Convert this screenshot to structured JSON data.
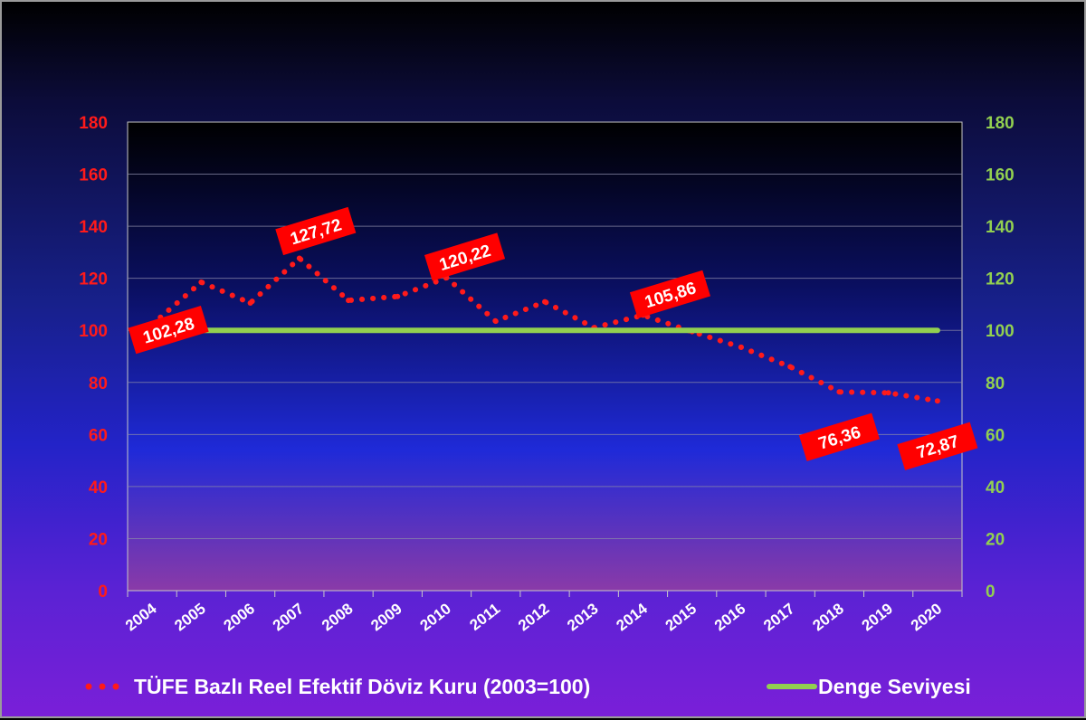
{
  "chart_data": {
    "type": "line",
    "title": "",
    "categories": [
      "2004",
      "2005",
      "2006",
      "2007",
      "2008",
      "2009",
      "2010",
      "2011",
      "2012",
      "2013",
      "2014",
      "2015",
      "2016",
      "2017",
      "2018",
      "2019",
      "2020"
    ],
    "series": [
      {
        "name": "TÜFE  Bazlı Reel Efektif Döviz Kuru (2003=100)",
        "axis": "left",
        "style": "dotted",
        "color": "#ff1a1a",
        "values": [
          102.28,
          118.5,
          110.5,
          127.72,
          111.5,
          113.0,
          120.22,
          103.5,
          111.0,
          101.0,
          105.86,
          99.5,
          93.5,
          86.0,
          76.36,
          76.0,
          72.87
        ]
      },
      {
        "name": "Denge Seviyesi",
        "axis": "left",
        "style": "solid",
        "color": "#92d050",
        "values": [
          100,
          100,
          100,
          100,
          100,
          100,
          100,
          100,
          100,
          100,
          100,
          100,
          100,
          100,
          100,
          100,
          100
        ]
      }
    ],
    "data_labels": [
      {
        "index": 0,
        "text": "102,28"
      },
      {
        "index": 3,
        "text": "127,72"
      },
      {
        "index": 6,
        "text": "120,22"
      },
      {
        "index": 10,
        "text": "105,86"
      },
      {
        "index": 14,
        "text": "76,36"
      },
      {
        "index": 16,
        "text": "72,87"
      }
    ],
    "y_left": {
      "min": 0,
      "max": 180,
      "ticks": [
        0,
        20,
        40,
        60,
        80,
        100,
        120,
        140,
        160,
        180
      ],
      "color": "#ff1a1a"
    },
    "y_right": {
      "min": 0,
      "max": 180,
      "ticks": [
        0,
        20,
        40,
        60,
        80,
        100,
        120,
        140,
        160,
        180
      ],
      "color": "#92d050"
    },
    "grid": true,
    "legend_position": "bottom",
    "colors": {
      "series_red": "#ff1a1a",
      "balance_green": "#92d050",
      "label_box": "#ff0000"
    }
  }
}
